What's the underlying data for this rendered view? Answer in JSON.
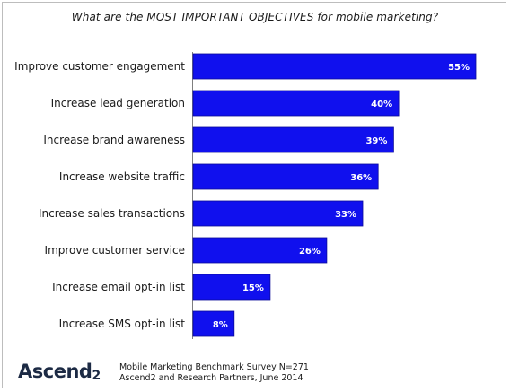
{
  "title": "What are the MOST IMPORTANT OBJECTIVES for mobile marketing?",
  "logo": {
    "text": "Ascend",
    "superscript": "2"
  },
  "footer": {
    "line1": "Mobile Marketing Benchmark Survey N=271",
    "line2": "Ascend2 and Research Partners, June 2014"
  },
  "colors": {
    "bar": "#1010ee",
    "bar_border": "#0a0a9a",
    "text": "#1a1a1a",
    "value_text": "#ffffff"
  },
  "chart_data": {
    "type": "bar",
    "orientation": "horizontal",
    "categories": [
      "Improve customer engagement",
      "Increase lead generation",
      "Increase brand awareness",
      "Increase website traffic",
      "Increase sales transactions",
      "Improve customer service",
      "Increase email opt-in list",
      "Increase SMS opt-in list"
    ],
    "values": [
      55,
      40,
      39,
      36,
      33,
      26,
      15,
      8
    ],
    "value_labels": [
      "55%",
      "40%",
      "39%",
      "36%",
      "33%",
      "26%",
      "15%",
      "8%"
    ],
    "unit": "%",
    "xlim": [
      0,
      60
    ],
    "grid": false,
    "legend": "none"
  }
}
